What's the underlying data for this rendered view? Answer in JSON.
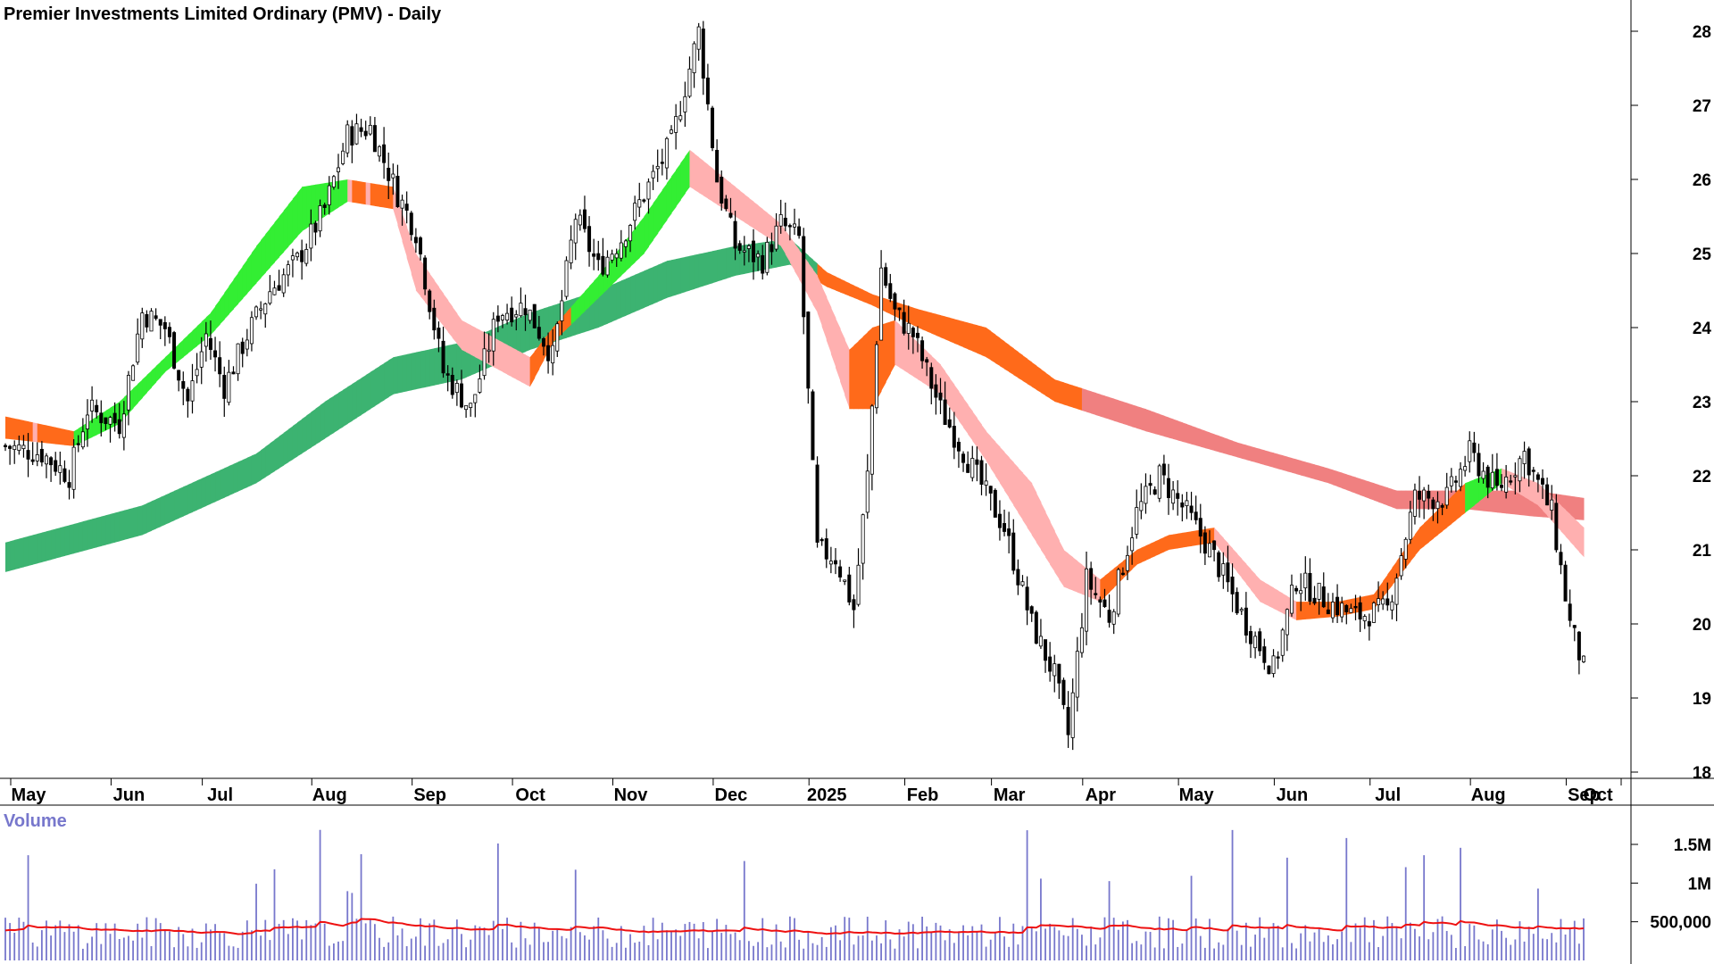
{
  "title": "Premier Investments Limited Ordinary (PMV) - Daily",
  "volume_label": "Volume",
  "colors": {
    "candle": "#000000",
    "long_band_up": "#3cb371",
    "long_band_down": "#f08080",
    "short_band_up": "#33ee33",
    "short_band_weak": "#ff6a1a",
    "short_band_down": "#ffb0b0",
    "volume_bar": "#7777cc",
    "volume_avg": "#ee1111",
    "volume_label": "#7777cc",
    "axis": "#000000"
  },
  "chart_data": {
    "type": "candlestick",
    "price_axis": {
      "ylim": [
        18,
        28.5
      ],
      "ticks": [
        18,
        19,
        20,
        21,
        22,
        23,
        24,
        25,
        26,
        27,
        28
      ]
    },
    "months": [
      "May",
      "Jun",
      "Jul",
      "Aug",
      "Sep",
      "Oct",
      "Nov",
      "Dec",
      "2025",
      "Feb",
      "Mar",
      "Apr",
      "May",
      "Jun",
      "Jul",
      "Aug",
      "Sep",
      "Oct"
    ],
    "volume_axis": {
      "ticks": [
        500000,
        1000000,
        1500000
      ],
      "tick_labels": [
        "500,000",
        "1M",
        "1.5M"
      ]
    },
    "close_path": [
      [
        0,
        22.4
      ],
      [
        8,
        22.3
      ],
      [
        14,
        22.0
      ],
      [
        18,
        22.9
      ],
      [
        25,
        22.7
      ],
      [
        30,
        24.2
      ],
      [
        35,
        24.0
      ],
      [
        40,
        23.0
      ],
      [
        44,
        23.9
      ],
      [
        48,
        23.2
      ],
      [
        53,
        23.9
      ],
      [
        58,
        24.5
      ],
      [
        64,
        24.9
      ],
      [
        70,
        25.6
      ],
      [
        75,
        26.6
      ],
      [
        80,
        26.7
      ],
      [
        86,
        25.8
      ],
      [
        90,
        25.3
      ],
      [
        96,
        23.4
      ],
      [
        102,
        22.9
      ],
      [
        108,
        24.2
      ],
      [
        114,
        24.3
      ],
      [
        120,
        23.6
      ],
      [
        125,
        25.5
      ],
      [
        130,
        24.8
      ],
      [
        135,
        25.2
      ],
      [
        140,
        25.8
      ],
      [
        146,
        26.5
      ],
      [
        152,
        28.0
      ],
      [
        156,
        26.0
      ],
      [
        160,
        25.1
      ],
      [
        166,
        24.9
      ],
      [
        170,
        25.4
      ],
      [
        174,
        25.2
      ],
      [
        178,
        21.0
      ],
      [
        182,
        20.9
      ],
      [
        186,
        20.2
      ],
      [
        189,
        22.0
      ],
      [
        192,
        24.8
      ],
      [
        195,
        24.2
      ],
      [
        199,
        23.9
      ],
      [
        205,
        22.9
      ],
      [
        212,
        22.1
      ],
      [
        219,
        21.3
      ],
      [
        225,
        20.0
      ],
      [
        230,
        19.3
      ],
      [
        233,
        18.5
      ],
      [
        237,
        20.6
      ],
      [
        242,
        20.1
      ],
      [
        248,
        21.5
      ],
      [
        253,
        22.0
      ],
      [
        259,
        21.5
      ],
      [
        265,
        20.9
      ],
      [
        272,
        20.0
      ],
      [
        278,
        19.4
      ],
      [
        283,
        20.6
      ],
      [
        290,
        20.3
      ],
      [
        296,
        20.1
      ],
      [
        303,
        20.2
      ],
      [
        309,
        21.7
      ],
      [
        316,
        21.7
      ],
      [
        321,
        22.3
      ],
      [
        327,
        21.8
      ],
      [
        333,
        22.3
      ],
      [
        339,
        21.5
      ],
      [
        343,
        20.0
      ],
      [
        346,
        19.4
      ]
    ],
    "long_band_path": [
      [
        0,
        20.7,
        21.1
      ],
      [
        30,
        21.2,
        21.6
      ],
      [
        55,
        21.9,
        22.3
      ],
      [
        70,
        22.5,
        23.0
      ],
      [
        85,
        23.1,
        23.6
      ],
      [
        100,
        23.3,
        23.8
      ],
      [
        115,
        23.7,
        24.2
      ],
      [
        130,
        24.0,
        24.5
      ],
      [
        145,
        24.4,
        24.9
      ],
      [
        160,
        24.7,
        25.1
      ],
      [
        172,
        24.85,
        25.2
      ],
      [
        180,
        24.55,
        24.75
      ],
      [
        190,
        24.3,
        24.45
      ],
      [
        200,
        24.0,
        24.25
      ],
      [
        215,
        23.6,
        24.0
      ],
      [
        230,
        23.0,
        23.3
      ],
      [
        250,
        22.6,
        22.9
      ],
      [
        270,
        22.25,
        22.45
      ],
      [
        290,
        21.9,
        22.1
      ],
      [
        305,
        21.55,
        21.8
      ],
      [
        320,
        21.55,
        21.8
      ],
      [
        335,
        21.45,
        21.8
      ],
      [
        346,
        21.4,
        21.7
      ]
    ],
    "short_band_path": [
      [
        0,
        22.5,
        22.8
      ],
      [
        15,
        22.4,
        22.6
      ],
      [
        25,
        22.7,
        23.0
      ],
      [
        35,
        23.4,
        23.6
      ],
      [
        45,
        23.9,
        24.2
      ],
      [
        55,
        24.6,
        25.1
      ],
      [
        65,
        25.3,
        25.9
      ],
      [
        75,
        25.7,
        26.0
      ],
      [
        85,
        25.6,
        25.9
      ],
      [
        90,
        24.5,
        25.0
      ],
      [
        100,
        23.7,
        24.1
      ],
      [
        115,
        23.2,
        23.6
      ],
      [
        120,
        23.8,
        24.0
      ],
      [
        130,
        24.4,
        24.7
      ],
      [
        140,
        25.0,
        25.5
      ],
      [
        150,
        25.9,
        26.4
      ],
      [
        160,
        25.5,
        25.9
      ],
      [
        170,
        25.1,
        25.4
      ],
      [
        178,
        24.2,
        24.7
      ],
      [
        185,
        22.9,
        23.7
      ],
      [
        190,
        22.9,
        24.0
      ],
      [
        195,
        23.5,
        24.1
      ],
      [
        205,
        23.1,
        23.5
      ],
      [
        215,
        22.2,
        22.6
      ],
      [
        225,
        21.2,
        21.9
      ],
      [
        232,
        20.5,
        21.0
      ],
      [
        240,
        20.3,
        20.6
      ],
      [
        248,
        20.8,
        21.0
      ],
      [
        255,
        21.0,
        21.2
      ],
      [
        265,
        21.1,
        21.3
      ],
      [
        275,
        20.3,
        20.6
      ],
      [
        283,
        20.05,
        20.3
      ],
      [
        292,
        20.1,
        20.3
      ],
      [
        300,
        20.2,
        20.4
      ],
      [
        310,
        21.0,
        21.3
      ],
      [
        320,
        21.5,
        21.9
      ],
      [
        328,
        21.9,
        22.1
      ],
      [
        336,
        21.6,
        21.9
      ],
      [
        346,
        20.9,
        21.3
      ]
    ]
  }
}
